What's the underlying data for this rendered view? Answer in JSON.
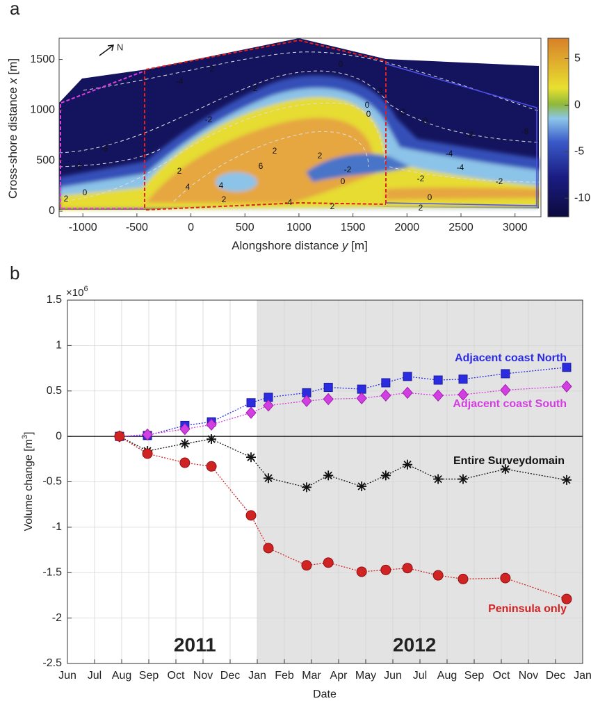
{
  "chart_data": [
    {
      "type": "contour",
      "panel_label": "a",
      "x_label": [
        "Alongshore distance ",
        "y",
        " [m]"
      ],
      "y_label": [
        "Cross-shore distance ",
        "x",
        " [m]"
      ],
      "xlim": [
        -1220,
        3240
      ],
      "ylim": [
        -55,
        1710
      ],
      "xticks": [
        -1000,
        -500,
        0,
        500,
        1000,
        1500,
        2000,
        2500,
        3000
      ],
      "yticks": [
        0,
        500,
        1000,
        1500
      ],
      "clim": [
        -12,
        7.2
      ],
      "cticks": [
        -10,
        -5,
        0,
        5
      ],
      "north_label": "N",
      "contour_labels": [
        "0",
        "-2",
        "-4",
        "-2",
        "0",
        "-2",
        "0",
        "-2",
        "-4",
        "-6",
        "-8",
        "-2",
        "0",
        "2",
        "-2",
        "2",
        "4",
        "6",
        "2",
        "4",
        "2",
        "0",
        "2",
        "-2",
        "0",
        "-2",
        "-4",
        "-2",
        "0",
        "2",
        "-4",
        "2",
        "2"
      ]
    },
    {
      "type": "line",
      "panel_label": "b",
      "x_label": "Date",
      "y_label": [
        "Volume change [m",
        "3",
        "]"
      ],
      "y_multiplier": [
        "×10",
        "6"
      ],
      "xlim": [
        0,
        19
      ],
      "ylim": [
        -2.5,
        1.5
      ],
      "xticks": [
        {
          "value": 0,
          "label": "Jun"
        },
        {
          "value": 1,
          "label": "Jul"
        },
        {
          "value": 2,
          "label": "Aug"
        },
        {
          "value": 3,
          "label": "Sep"
        },
        {
          "value": 4,
          "label": "Oct"
        },
        {
          "value": 5,
          "label": "Nov"
        },
        {
          "value": 6,
          "label": "Dec"
        },
        {
          "value": 7,
          "label": "Jan"
        },
        {
          "value": 8,
          "label": "Feb"
        },
        {
          "value": 9,
          "label": "Mar"
        },
        {
          "value": 10,
          "label": "Apr"
        },
        {
          "value": 11,
          "label": "May"
        },
        {
          "value": 12,
          "label": "Jun"
        },
        {
          "value": 13,
          "label": "Jul"
        },
        {
          "value": 14,
          "label": "Aug"
        },
        {
          "value": 15,
          "label": "Sep"
        },
        {
          "value": 16,
          "label": "Oct"
        },
        {
          "value": 17,
          "label": "Nov"
        },
        {
          "value": 18,
          "label": "Dec"
        },
        {
          "value": 19,
          "label": "Jan"
        }
      ],
      "yticks": [
        -2.5,
        -2,
        -1.5,
        -1,
        -0.5,
        0,
        0.5,
        1,
        1.5
      ],
      "grid": true,
      "shaded_span": [
        7,
        19
      ],
      "shade_color": "#e3e3e3",
      "year_labels": [
        {
          "value": 4.7,
          "label": "2011"
        },
        {
          "value": 12.8,
          "label": "2012"
        }
      ],
      "x": [
        1.92,
        2.95,
        4.33,
        5.31,
        6.77,
        7.41,
        8.82,
        9.62,
        10.85,
        11.74,
        12.54,
        13.67,
        14.59,
        16.15,
        18.41
      ],
      "series": [
        {
          "name": "Adjacent coast North",
          "color": "#2b2be0",
          "marker": "square",
          "values": [
            0,
            0.01,
            0.12,
            0.16,
            0.37,
            0.43,
            0.48,
            0.54,
            0.52,
            0.59,
            0.66,
            0.62,
            0.63,
            0.69,
            0.76
          ]
        },
        {
          "name": "Adjacent coast South",
          "color": "#d23fe0",
          "marker": "diamond",
          "values": [
            0,
            0.02,
            0.08,
            0.13,
            0.26,
            0.34,
            0.39,
            0.41,
            0.42,
            0.45,
            0.48,
            0.45,
            0.46,
            0.51,
            0.55
          ]
        },
        {
          "name": "Entire Surveydomain",
          "color": "#111111",
          "marker": "asterisk",
          "values": [
            0,
            -0.16,
            -0.08,
            -0.03,
            -0.23,
            -0.46,
            -0.56,
            -0.43,
            -0.55,
            -0.43,
            -0.31,
            -0.47,
            -0.47,
            -0.36,
            -0.48
          ]
        },
        {
          "name": "Peninsula only",
          "color": "#d02424",
          "marker": "circle",
          "values": [
            0,
            -0.19,
            -0.29,
            -0.33,
            -0.87,
            -1.23,
            -1.42,
            -1.39,
            -1.49,
            -1.47,
            -1.45,
            -1.53,
            -1.57,
            -1.56,
            -1.79
          ]
        }
      ]
    }
  ]
}
